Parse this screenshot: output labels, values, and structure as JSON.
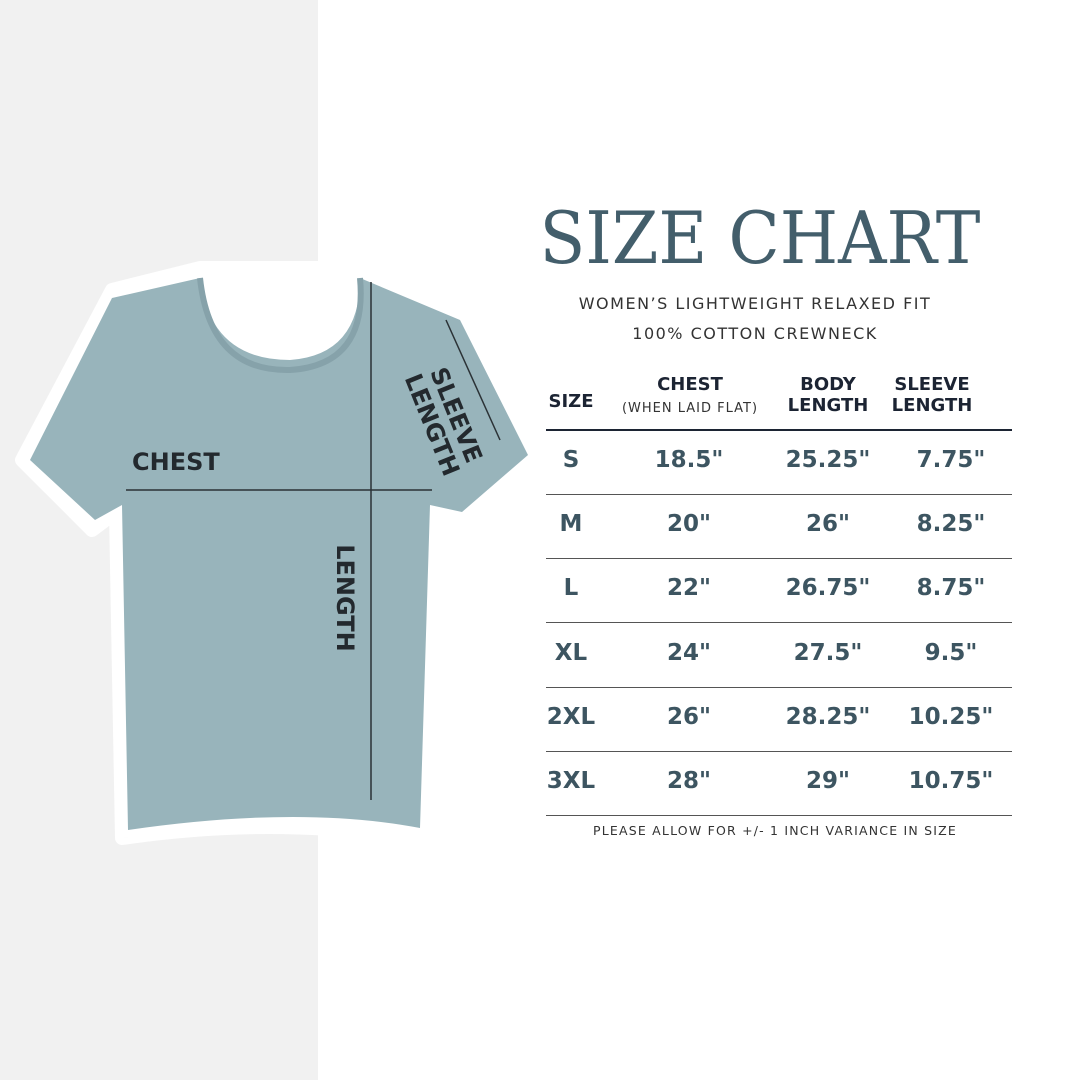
{
  "title": "SIZE CHART",
  "subtitle_line1": "WOMEN’S LIGHTWEIGHT RELAXED FIT",
  "subtitle_line2": "100% COTTON CREWNECK",
  "diagram": {
    "chest": "CHEST",
    "length": "LENGTH",
    "sleeve_line1": "SLEEVE",
    "sleeve_line2": "LENGTH",
    "shirt_color": "#98b4bb"
  },
  "table": {
    "headers": {
      "size": "SIZE",
      "chest": "CHEST",
      "chest_note": "(WHEN LAID FLAT)",
      "body_1": "BODY",
      "body_2": "LENGTH",
      "sleeve_1": "SLEEVE",
      "sleeve_2": "LENGTH"
    },
    "rows": [
      {
        "size": "S",
        "chest": "18.5\"",
        "body": "25.25\"",
        "sleeve": "7.75\""
      },
      {
        "size": "M",
        "chest": "20\"",
        "body": "26\"",
        "sleeve": "8.25\""
      },
      {
        "size": "L",
        "chest": "22\"",
        "body": "26.75\"",
        "sleeve": "8.75\""
      },
      {
        "size": "XL",
        "chest": "24\"",
        "body": "27.5\"",
        "sleeve": "9.5\""
      },
      {
        "size": "2XL",
        "chest": "26\"",
        "body": "28.25\"",
        "sleeve": "10.25\""
      },
      {
        "size": "3XL",
        "chest": "28\"",
        "body": "29\"",
        "sleeve": "10.75\""
      }
    ]
  },
  "footnote": "PLEASE ALLOW FOR +/- 1 INCH VARIANCE IN SIZE",
  "colors": {
    "title": "#435e6b",
    "values": "#3d5561",
    "background_band": "#f1f1f1"
  }
}
